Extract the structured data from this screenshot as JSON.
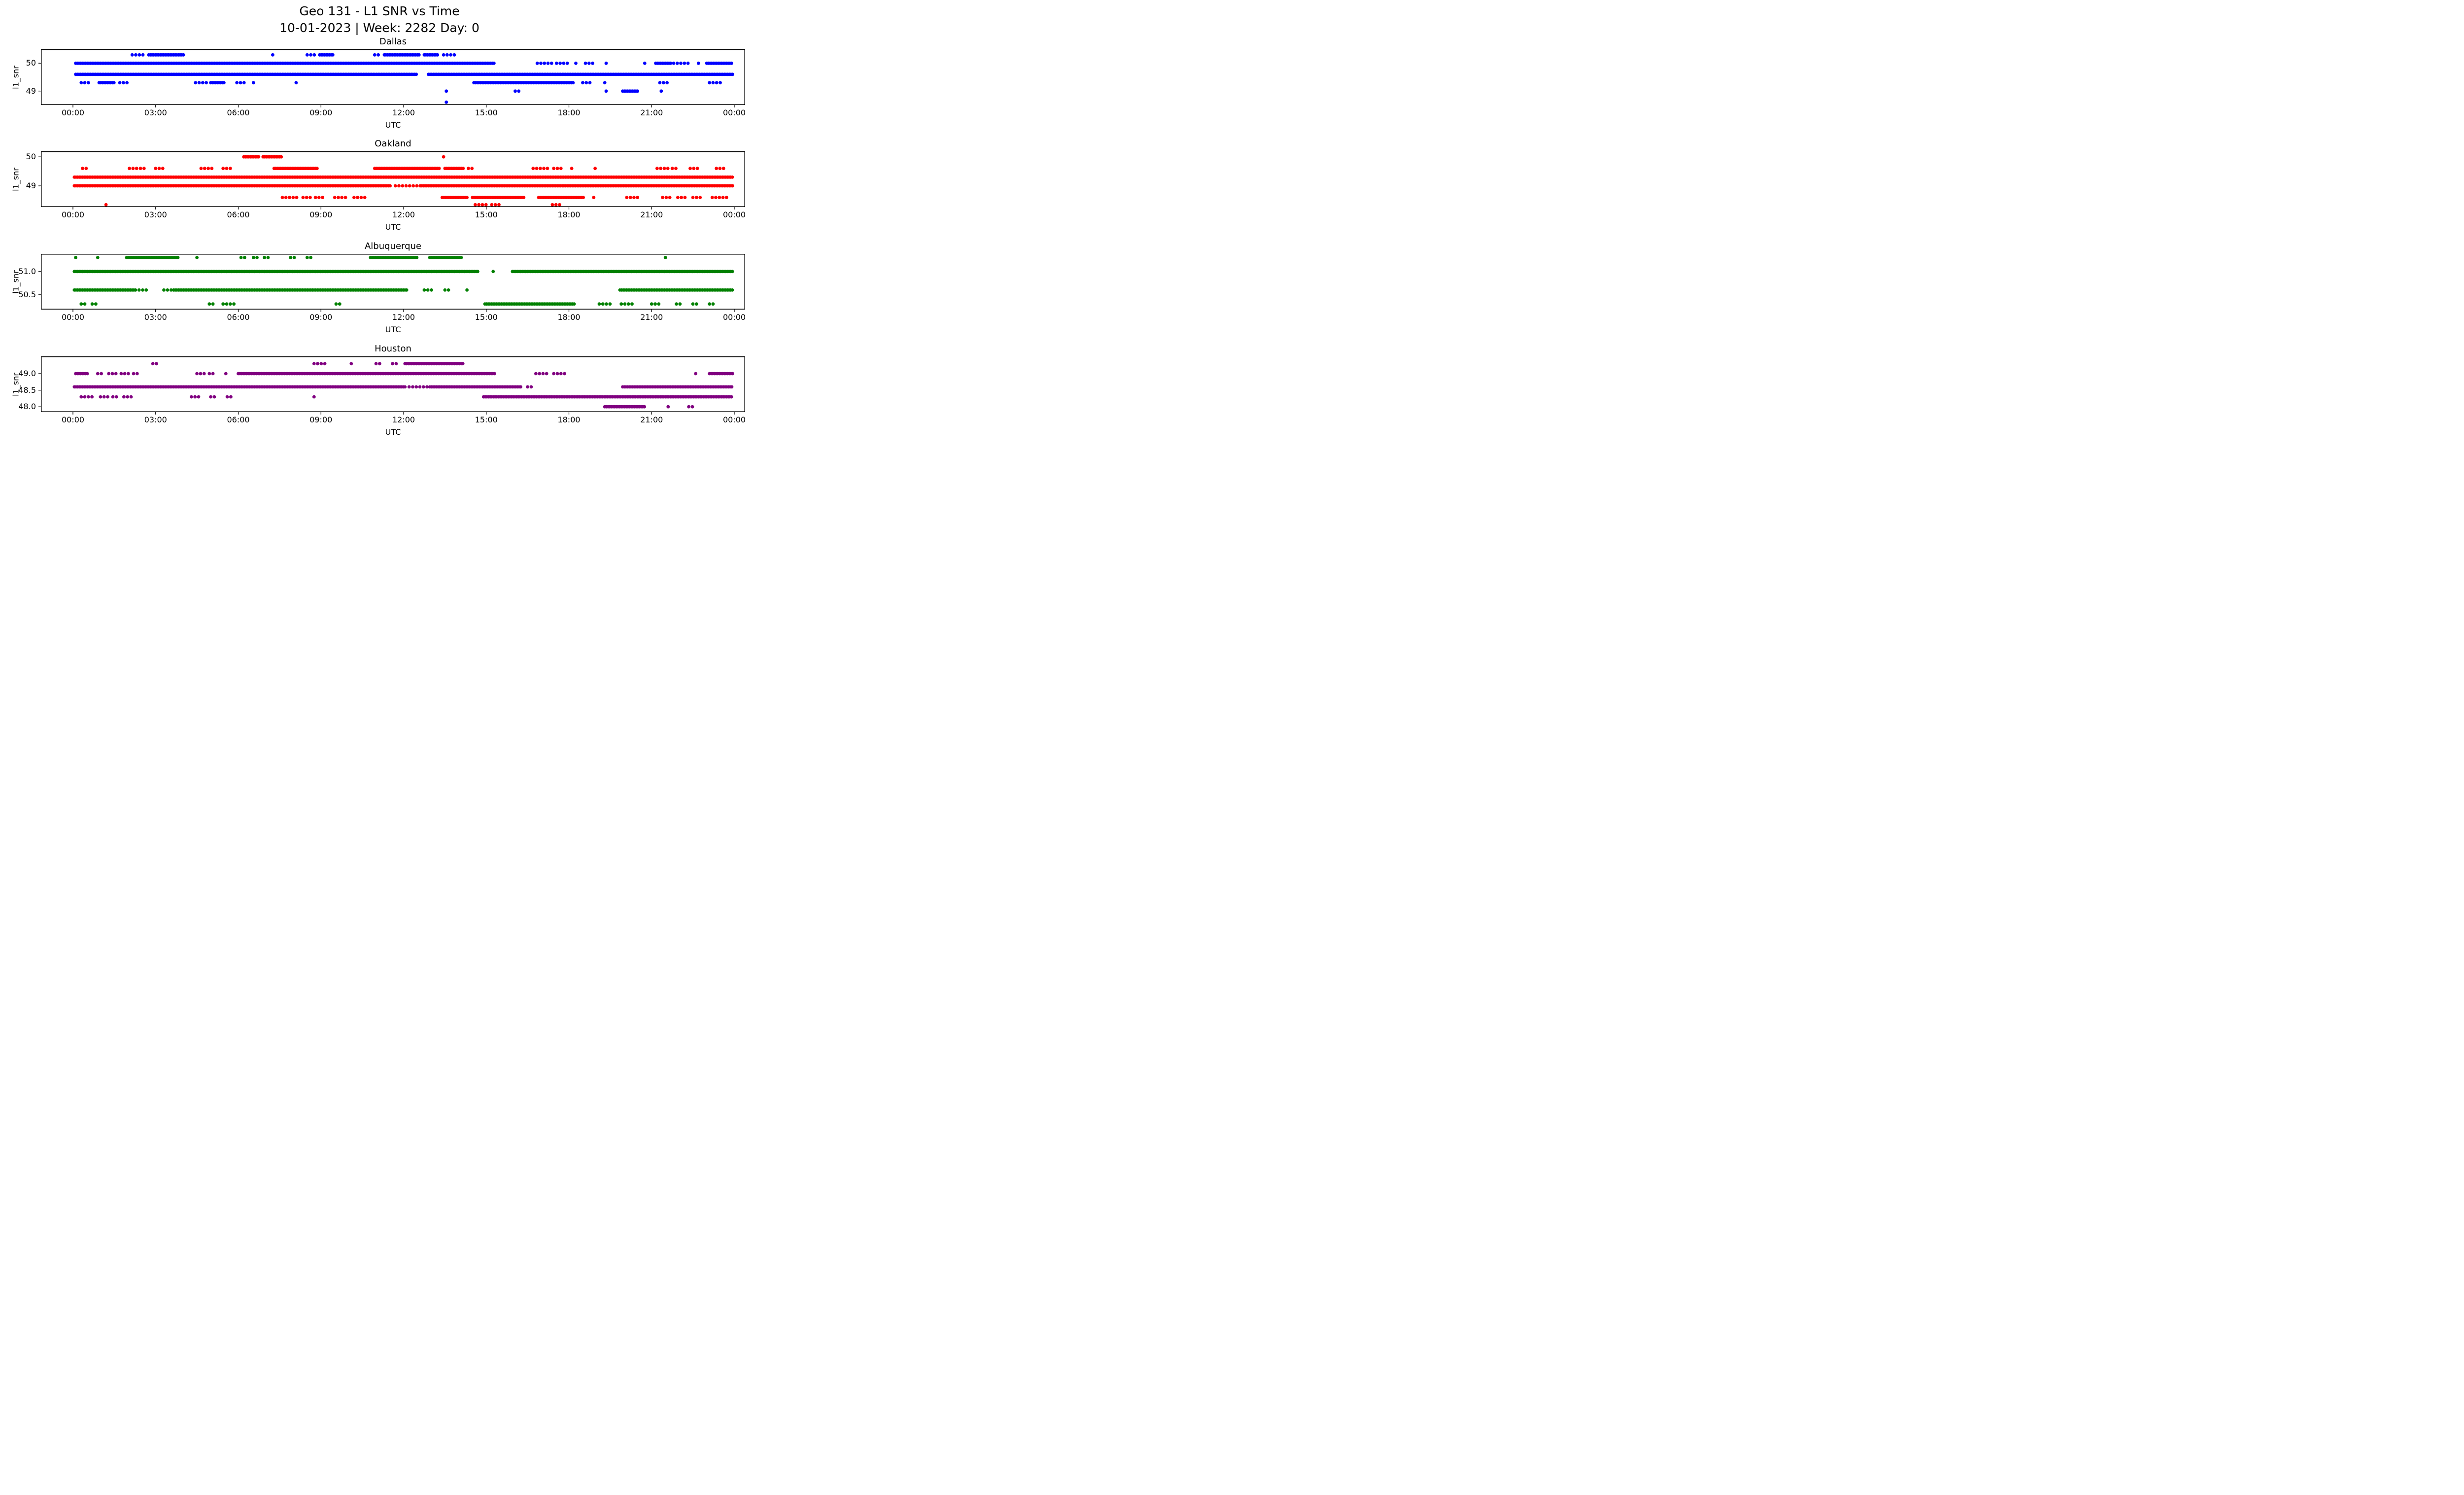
{
  "figure": {
    "title_line1": "Geo 131 - L1 SNR vs Time",
    "title_line2": "10-01-2023 | Week: 2282 Day: 0",
    "background_color": "#ffffff",
    "text_color": "#000000"
  },
  "chart_data": [
    {
      "type": "scatter",
      "title": "Dallas",
      "color": "#0000ff",
      "xlabel": "UTC",
      "ylabel": "l1_snr",
      "marker": "circle",
      "grid": false,
      "legend": null,
      "x_ticks": [
        "00:00",
        "03:00",
        "06:00",
        "09:00",
        "12:00",
        "15:00",
        "18:00",
        "21:00",
        "00:00"
      ],
      "x_tick_hours": [
        0,
        3,
        6,
        9,
        12,
        15,
        18,
        21,
        24
      ],
      "xlim_hours": [
        0,
        24
      ],
      "ylim": [
        48.5,
        50.5
      ],
      "y_ticks": [
        {
          "value": 50,
          "label": "50"
        },
        {
          "value": 49,
          "label": "49"
        }
      ],
      "snr_levels": [
        {
          "y": 50.3,
          "runs": [
            [
              "s",
              2.15,
              2.55
            ],
            [
              "d",
              2.75,
              4.05
            ],
            [
              "p",
              7.25
            ],
            [
              "s",
              8.5,
              8.8
            ],
            [
              "d",
              8.95,
              9.45
            ],
            [
              "s",
              10.95,
              11.15
            ],
            [
              "d",
              11.3,
              12.6
            ],
            [
              "d",
              12.75,
              13.25
            ],
            [
              "s",
              13.45,
              13.9
            ]
          ]
        },
        {
          "y": 50.0,
          "runs": [
            [
              "d",
              0.1,
              15.3
            ],
            [
              "s",
              16.85,
              17.4
            ],
            [
              "s",
              17.55,
              17.95
            ],
            [
              "p",
              18.25
            ],
            [
              "s",
              18.6,
              18.95
            ],
            [
              "p",
              19.35
            ],
            [
              "p",
              20.75
            ],
            [
              "d",
              21.15,
              21.7
            ],
            [
              "s",
              21.8,
              22.35
            ],
            [
              "p",
              22.7
            ],
            [
              "d",
              23.0,
              23.95
            ]
          ]
        },
        {
          "y": 49.6,
          "runs": [
            [
              "d",
              0.1,
              12.5
            ],
            [
              "d",
              12.9,
              23.95
            ]
          ]
        },
        {
          "y": 49.3,
          "runs": [
            [
              "s",
              0.3,
              0.6
            ],
            [
              "d",
              0.95,
              1.5
            ],
            [
              "s",
              1.7,
              2.0
            ],
            [
              "s",
              4.45,
              4.85
            ],
            [
              "d",
              5.0,
              5.5
            ],
            [
              "s",
              5.95,
              6.25
            ],
            [
              "p",
              6.55
            ],
            [
              "p",
              8.1
            ],
            [
              "d",
              14.55,
              18.2
            ],
            [
              "s",
              18.5,
              18.85
            ],
            [
              "p",
              19.3
            ],
            [
              "s",
              21.3,
              21.65
            ],
            [
              "s",
              23.1,
              23.55
            ]
          ]
        },
        {
          "y": 49.0,
          "runs": [
            [
              "p",
              13.55
            ],
            [
              "s",
              16.05,
              16.3
            ],
            [
              "p",
              19.35
            ],
            [
              "d",
              19.95,
              20.5
            ],
            [
              "p",
              21.35
            ]
          ]
        },
        {
          "y": 48.6,
          "runs": [
            [
              "p",
              13.55
            ]
          ]
        }
      ]
    },
    {
      "type": "scatter",
      "title": "Oakland",
      "color": "#ff0000",
      "xlabel": "UTC",
      "ylabel": "l1_snr",
      "marker": "circle",
      "grid": false,
      "legend": null,
      "x_ticks": [
        "00:00",
        "03:00",
        "06:00",
        "09:00",
        "12:00",
        "15:00",
        "18:00",
        "21:00",
        "00:00"
      ],
      "x_tick_hours": [
        0,
        3,
        6,
        9,
        12,
        15,
        18,
        21,
        24
      ],
      "xlim_hours": [
        0,
        24
      ],
      "ylim": [
        48.27,
        50.19
      ],
      "y_ticks": [
        {
          "value": 50,
          "label": "50"
        },
        {
          "value": 49,
          "label": "49"
        }
      ],
      "snr_levels": [
        {
          "y": 50.0,
          "runs": [
            [
              "d",
              6.2,
              6.75
            ],
            [
              "d",
              6.9,
              7.6
            ],
            [
              "p",
              13.45
            ]
          ]
        },
        {
          "y": 49.6,
          "runs": [
            [
              "s",
              0.35,
              0.6
            ],
            [
              "s",
              2.05,
              2.35
            ],
            [
              "s",
              2.45,
              2.65
            ],
            [
              "s",
              3.0,
              3.35
            ],
            [
              "s",
              4.65,
              5.05
            ],
            [
              "s",
              5.45,
              5.75
            ],
            [
              "d",
              7.3,
              8.9
            ],
            [
              "d",
              10.95,
              13.3
            ],
            [
              "d",
              13.5,
              14.2
            ],
            [
              "s",
              14.35,
              14.6
            ],
            [
              "s",
              16.7,
              17.3
            ],
            [
              "s",
              17.45,
              17.75
            ],
            [
              "p",
              18.1
            ],
            [
              "p",
              18.95
            ],
            [
              "s",
              21.2,
              21.6
            ],
            [
              "s",
              21.75,
              22.0
            ],
            [
              "s",
              22.4,
              22.75
            ],
            [
              "s",
              23.35,
              23.65
            ]
          ]
        },
        {
          "y": 49.3,
          "runs": [
            [
              "d",
              0.05,
              23.95
            ]
          ]
        },
        {
          "y": 49.0,
          "runs": [
            [
              "d",
              0.05,
              11.55
            ],
            [
              "s",
              11.7,
              12.5
            ],
            [
              "d",
              12.6,
              23.95
            ]
          ]
        },
        {
          "y": 48.6,
          "runs": [
            [
              "s",
              7.6,
              8.15
            ],
            [
              "s",
              8.35,
              8.65
            ],
            [
              "s",
              8.8,
              9.15
            ],
            [
              "s",
              9.5,
              9.9
            ],
            [
              "s",
              10.2,
              10.65
            ],
            [
              "d",
              13.4,
              14.3
            ],
            [
              "d",
              14.5,
              16.4
            ],
            [
              "d",
              16.9,
              18.55
            ],
            [
              "p",
              18.9
            ],
            [
              "s",
              20.1,
              20.6
            ],
            [
              "s",
              21.4,
              21.7
            ],
            [
              "s",
              21.95,
              22.3
            ],
            [
              "s",
              22.5,
              22.85
            ],
            [
              "s",
              23.2,
              23.8
            ]
          ]
        },
        {
          "y": 48.35,
          "runs": [
            [
              "p",
              1.2
            ],
            [
              "s",
              14.6,
              15.1
            ],
            [
              "s",
              15.2,
              15.55
            ],
            [
              "s",
              17.4,
              17.7
            ]
          ]
        }
      ]
    },
    {
      "type": "scatter",
      "title": "Albuquerque",
      "color": "#008000",
      "xlabel": "UTC",
      "ylabel": "l1_snr",
      "marker": "circle",
      "grid": false,
      "legend": null,
      "x_ticks": [
        "00:00",
        "03:00",
        "06:00",
        "09:00",
        "12:00",
        "15:00",
        "18:00",
        "21:00",
        "00:00"
      ],
      "x_tick_hours": [
        0,
        3,
        6,
        9,
        12,
        15,
        18,
        21,
        24
      ],
      "xlim_hours": [
        0,
        24
      ],
      "ylim": [
        50.18,
        51.38
      ],
      "y_ticks": [
        {
          "value": 51.0,
          "label": "51.0"
        },
        {
          "value": 50.5,
          "label": "50.5"
        }
      ],
      "snr_levels": [
        {
          "y": 51.3,
          "runs": [
            [
              "p",
              0.1
            ],
            [
              "p",
              0.9
            ],
            [
              "d",
              1.95,
              3.85
            ],
            [
              "p",
              4.5
            ],
            [
              "s",
              6.1,
              6.35
            ],
            [
              "s",
              6.55,
              6.8
            ],
            [
              "s",
              6.95,
              7.2
            ],
            [
              "s",
              7.9,
              8.15
            ],
            [
              "s",
              8.5,
              8.75
            ],
            [
              "d",
              10.8,
              12.5
            ],
            [
              "d",
              12.95,
              14.1
            ],
            [
              "p",
              21.5
            ]
          ]
        },
        {
          "y": 51.0,
          "runs": [
            [
              "d",
              0.05,
              14.7
            ],
            [
              "p",
              15.25
            ],
            [
              "d",
              15.95,
              23.95
            ]
          ]
        },
        {
          "y": 50.6,
          "runs": [
            [
              "d",
              0.05,
              2.3
            ],
            [
              "s",
              2.4,
              2.7
            ],
            [
              "s",
              3.3,
              3.6
            ],
            [
              "d",
              3.65,
              12.15
            ],
            [
              "s",
              12.75,
              13.1
            ],
            [
              "s",
              13.5,
              13.7
            ],
            [
              "p",
              14.3
            ],
            [
              "d",
              19.85,
              23.95
            ]
          ]
        },
        {
          "y": 50.3,
          "runs": [
            [
              "s",
              0.3,
              0.5
            ],
            [
              "s",
              0.7,
              0.9
            ],
            [
              "s",
              4.95,
              5.2
            ],
            [
              "s",
              5.45,
              5.95
            ],
            [
              "s",
              9.55,
              9.8
            ],
            [
              "d",
              14.95,
              18.2
            ],
            [
              "s",
              19.1,
              19.55
            ],
            [
              "s",
              19.9,
              20.35
            ],
            [
              "s",
              21.0,
              21.3
            ],
            [
              "s",
              21.9,
              22.15
            ],
            [
              "s",
              22.5,
              22.75
            ],
            [
              "s",
              23.1,
              23.35
            ]
          ]
        }
      ]
    },
    {
      "type": "scatter",
      "title": "Houston",
      "color": "#800080",
      "xlabel": "UTC",
      "ylabel": "l1_snr",
      "marker": "circle",
      "grid": false,
      "legend": null,
      "x_ticks": [
        "00:00",
        "03:00",
        "06:00",
        "09:00",
        "12:00",
        "15:00",
        "18:00",
        "21:00",
        "00:00"
      ],
      "x_tick_hours": [
        0,
        3,
        6,
        9,
        12,
        15,
        18,
        21,
        24
      ],
      "xlim_hours": [
        0,
        24
      ],
      "ylim": [
        47.84,
        49.52
      ],
      "y_ticks": [
        {
          "value": 49.0,
          "label": "49.0"
        },
        {
          "value": 48.5,
          "label": "48.5"
        },
        {
          "value": 48.0,
          "label": "48.0"
        }
      ],
      "snr_levels": [
        {
          "y": 49.3,
          "runs": [
            [
              "s",
              2.9,
              3.15
            ],
            [
              "s",
              8.75,
              9.15
            ],
            [
              "p",
              10.1
            ],
            [
              "s",
              11.0,
              11.2
            ],
            [
              "s",
              11.6,
              11.8
            ],
            [
              "d",
              12.05,
              14.2
            ]
          ]
        },
        {
          "y": 49.0,
          "runs": [
            [
              "d",
              0.1,
              0.55
            ],
            [
              "s",
              0.9,
              1.15
            ],
            [
              "s",
              1.3,
              1.6
            ],
            [
              "s",
              1.75,
              2.1
            ],
            [
              "s",
              2.2,
              2.45
            ],
            [
              "s",
              4.5,
              4.8
            ],
            [
              "s",
              4.95,
              5.15
            ],
            [
              "p",
              5.55
            ],
            [
              "d",
              6.0,
              15.35
            ],
            [
              "s",
              16.8,
              17.3
            ],
            [
              "s",
              17.45,
              17.9
            ],
            [
              "p",
              22.6
            ],
            [
              "d",
              23.1,
              23.95
            ]
          ]
        },
        {
          "y": 48.6,
          "runs": [
            [
              "d",
              0.05,
              12.1
            ],
            [
              "s",
              12.2,
              12.85
            ],
            [
              "d",
              12.95,
              16.25
            ],
            [
              "s",
              16.5,
              16.75
            ],
            [
              "d",
              19.95,
              23.95
            ]
          ]
        },
        {
          "y": 48.3,
          "runs": [
            [
              "s",
              0.3,
              0.75
            ],
            [
              "s",
              1.0,
              1.3
            ],
            [
              "s",
              1.45,
              1.7
            ],
            [
              "s",
              1.85,
              2.15
            ],
            [
              "s",
              4.3,
              4.6
            ],
            [
              "s",
              5.0,
              5.25
            ],
            [
              "s",
              5.6,
              5.85
            ],
            [
              "p",
              8.75
            ],
            [
              "d",
              14.9,
              23.95
            ]
          ]
        },
        {
          "y": 48.0,
          "runs": [
            [
              "d",
              19.3,
              20.75
            ],
            [
              "p",
              21.6
            ],
            [
              "s",
              22.35,
              22.55
            ]
          ]
        }
      ]
    }
  ]
}
